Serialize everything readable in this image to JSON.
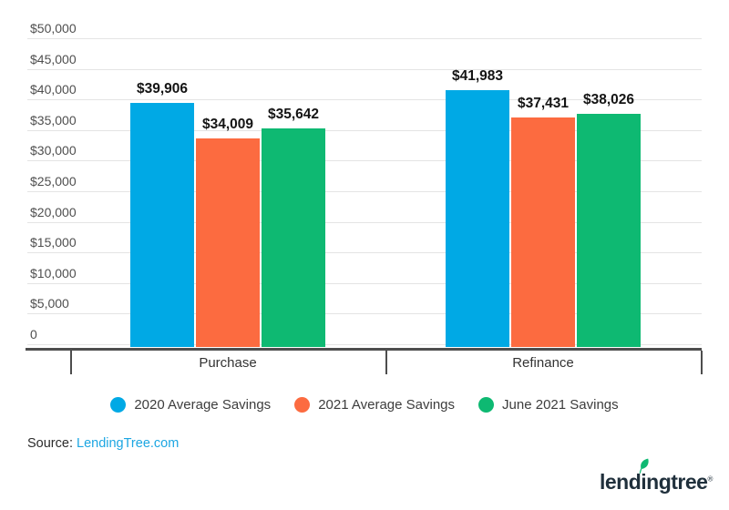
{
  "chart_data": {
    "type": "bar",
    "categories": [
      "Purchase",
      "Refinance"
    ],
    "series": [
      {
        "name": "2020 Average Savings",
        "color": "#00a9e5",
        "values": [
          39906,
          41983
        ],
        "labels": [
          "$39,906",
          "$41,983"
        ]
      },
      {
        "name": "2021 Average Savings",
        "color": "#fc6b40",
        "values": [
          34009,
          37431
        ],
        "labels": [
          "$34,009",
          "$37,431"
        ]
      },
      {
        "name": "June 2021 Savings",
        "color": "#0eb972",
        "values": [
          35642,
          38026
        ],
        "labels": [
          "$35,642",
          "$38,026"
        ]
      }
    ],
    "ylim": [
      0,
      50000
    ],
    "ytick_step": 5000,
    "ytick_labels": [
      "0",
      "$5,000",
      "$10,000",
      "$15,000",
      "$20,000",
      "$25,000",
      "$30,000",
      "$35,000",
      "$40,000",
      "$45,000",
      "$50,000"
    ],
    "grid": true,
    "legend_position": "bottom",
    "value_label_color": "#141414",
    "gridline_color": "#e4e4e4",
    "axis_color": "#4d4d4d"
  },
  "source": {
    "prefix": "Source: ",
    "link": "LendingTree.com",
    "link_color": "#1ca6e2"
  },
  "logo": {
    "part1": "lend",
    "part2": "i",
    "part3": "ngtree",
    "trademark": "®",
    "text_color": "#20303c",
    "leaf_color": "#0eb972"
  }
}
